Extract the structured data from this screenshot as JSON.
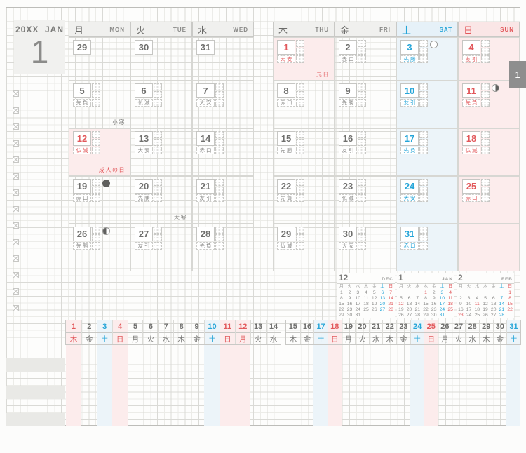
{
  "header": {
    "year": "20XX",
    "month_en": "JAN",
    "month_num": "1",
    "tab": "1"
  },
  "colors": {
    "red": "#e2585b",
    "blue": "#25a5d8",
    "gray": "#6f6f6d",
    "sun_bg": "#fcecec",
    "sat_bg": "#ecf4f9",
    "holiday_bg": "#fcecec",
    "header_bg": "#f0f0ee",
    "tab_bg": "#8e8e8e"
  },
  "weekday_header": [
    {
      "kanji": "月",
      "abbr": "MON",
      "type": "weekday"
    },
    {
      "kanji": "火",
      "abbr": "TUE",
      "type": "weekday"
    },
    {
      "kanji": "水",
      "abbr": "WED",
      "type": "weekday"
    },
    {
      "kanji": "木",
      "abbr": "THU",
      "type": "weekday"
    },
    {
      "kanji": "金",
      "abbr": "FRI",
      "type": "weekday"
    },
    {
      "kanji": "土",
      "abbr": "SAT",
      "type": "saturday"
    },
    {
      "kanji": "日",
      "abbr": "SUN",
      "type": "sunday"
    }
  ],
  "grid": {
    "weeks": [
      [
        {
          "day": "29",
          "type": "prev"
        },
        {
          "day": "30",
          "type": "prev"
        },
        {
          "day": "31",
          "type": "prev"
        },
        {
          "day": "1",
          "rokuyo": "大安",
          "type": "holiday",
          "note": "元日",
          "note_color": "red"
        },
        {
          "day": "2",
          "rokuyo": "赤口",
          "type": "normal"
        },
        {
          "day": "3",
          "rokuyo": "先勝",
          "type": "sat",
          "moon": "full"
        },
        {
          "day": "4",
          "rokuyo": "友引",
          "type": "sun"
        }
      ],
      [
        {
          "day": "5",
          "rokuyo": "先負",
          "type": "normal",
          "note": "小寒",
          "note_color": "gray"
        },
        {
          "day": "6",
          "rokuyo": "仏滅",
          "type": "normal"
        },
        {
          "day": "7",
          "rokuyo": "大安",
          "type": "normal"
        },
        {
          "day": "8",
          "rokuyo": "赤口",
          "type": "normal"
        },
        {
          "day": "9",
          "rokuyo": "先勝",
          "type": "normal"
        },
        {
          "day": "10",
          "rokuyo": "友引",
          "type": "sat"
        },
        {
          "day": "11",
          "rokuyo": "先負",
          "type": "sun",
          "moon": "last"
        }
      ],
      [
        {
          "day": "12",
          "rokuyo": "仏滅",
          "type": "holiday",
          "note": "成人の日",
          "note_color": "red"
        },
        {
          "day": "13",
          "rokuyo": "大安",
          "type": "normal"
        },
        {
          "day": "14",
          "rokuyo": "赤口",
          "type": "normal"
        },
        {
          "day": "15",
          "rokuyo": "先勝",
          "type": "normal"
        },
        {
          "day": "16",
          "rokuyo": "友引",
          "type": "normal"
        },
        {
          "day": "17",
          "rokuyo": "先負",
          "type": "sat"
        },
        {
          "day": "18",
          "rokuyo": "仏滅",
          "type": "sun"
        }
      ],
      [
        {
          "day": "19",
          "rokuyo": "赤口",
          "type": "normal",
          "moon": "new"
        },
        {
          "day": "20",
          "rokuyo": "先勝",
          "type": "normal",
          "note": "大寒",
          "note_color": "gray"
        },
        {
          "day": "21",
          "rokuyo": "友引",
          "type": "normal"
        },
        {
          "day": "22",
          "rokuyo": "先負",
          "type": "normal"
        },
        {
          "day": "23",
          "rokuyo": "仏滅",
          "type": "normal"
        },
        {
          "day": "24",
          "rokuyo": "大安",
          "type": "sat"
        },
        {
          "day": "25",
          "rokuyo": "赤口",
          "type": "sun"
        }
      ],
      [
        {
          "day": "26",
          "rokuyo": "先勝",
          "type": "normal",
          "moon": "first"
        },
        {
          "day": "27",
          "rokuyo": "友引",
          "type": "normal"
        },
        {
          "day": "28",
          "rokuyo": "先負",
          "type": "normal"
        },
        {
          "day": "29",
          "rokuyo": "仏滅",
          "type": "normal"
        },
        {
          "day": "30",
          "rokuyo": "大安",
          "type": "normal"
        },
        {
          "day": "31",
          "rokuyo": "赤口",
          "type": "sat"
        },
        {
          "type": "empty"
        }
      ]
    ]
  },
  "mini_weekdays": [
    "月",
    "火",
    "水",
    "木",
    "金",
    "土",
    "日"
  ],
  "mini_calendars": [
    {
      "num": "12",
      "abbr": "DEC",
      "start": 0,
      "days": 31,
      "red": [
        7,
        14,
        21,
        28
      ],
      "blue": [
        6,
        13,
        20,
        27
      ]
    },
    {
      "num": "1",
      "abbr": "JAN",
      "start": 3,
      "days": 31,
      "red": [
        1,
        4,
        11,
        12,
        18,
        25
      ],
      "blue": [
        3,
        10,
        17,
        24,
        31
      ]
    },
    {
      "num": "2",
      "abbr": "FEB",
      "start": 6,
      "days": 28,
      "red": [
        1,
        8,
        11,
        15,
        22,
        23
      ],
      "blue": [
        7,
        14,
        21,
        28
      ]
    }
  ],
  "strip": {
    "days": [
      {
        "n": "1",
        "w": "木",
        "c": "red"
      },
      {
        "n": "2",
        "w": "金",
        "c": ""
      },
      {
        "n": "3",
        "w": "土",
        "c": "blue"
      },
      {
        "n": "4",
        "w": "日",
        "c": "red"
      },
      {
        "n": "5",
        "w": "月",
        "c": ""
      },
      {
        "n": "6",
        "w": "火",
        "c": ""
      },
      {
        "n": "7",
        "w": "水",
        "c": ""
      },
      {
        "n": "8",
        "w": "木",
        "c": ""
      },
      {
        "n": "9",
        "w": "金",
        "c": ""
      },
      {
        "n": "10",
        "w": "土",
        "c": "blue"
      },
      {
        "n": "11",
        "w": "日",
        "c": "red"
      },
      {
        "n": "12",
        "w": "月",
        "c": "red"
      },
      {
        "n": "13",
        "w": "火",
        "c": ""
      },
      {
        "n": "14",
        "w": "水",
        "c": ""
      },
      {
        "n": "15",
        "w": "木",
        "c": ""
      },
      {
        "n": "16",
        "w": "金",
        "c": ""
      },
      {
        "n": "17",
        "w": "土",
        "c": "blue"
      },
      {
        "n": "18",
        "w": "日",
        "c": "red"
      },
      {
        "n": "19",
        "w": "月",
        "c": ""
      },
      {
        "n": "20",
        "w": "火",
        "c": ""
      },
      {
        "n": "21",
        "w": "水",
        "c": ""
      },
      {
        "n": "22",
        "w": "木",
        "c": ""
      },
      {
        "n": "23",
        "w": "金",
        "c": ""
      },
      {
        "n": "24",
        "w": "土",
        "c": "blue"
      },
      {
        "n": "25",
        "w": "日",
        "c": "red"
      },
      {
        "n": "26",
        "w": "月",
        "c": ""
      },
      {
        "n": "27",
        "w": "火",
        "c": ""
      },
      {
        "n": "28",
        "w": "水",
        "c": ""
      },
      {
        "n": "29",
        "w": "木",
        "c": ""
      },
      {
        "n": "30",
        "w": "金",
        "c": ""
      },
      {
        "n": "31",
        "w": "土",
        "c": "blue"
      }
    ]
  },
  "side_checkboxes": {
    "count": 14
  }
}
